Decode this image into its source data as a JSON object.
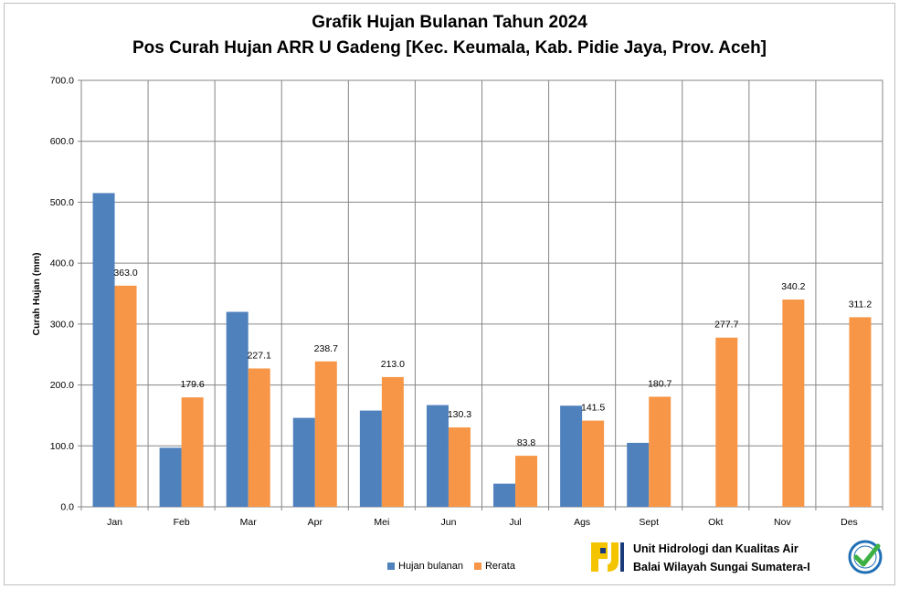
{
  "chart_data": {
    "type": "bar",
    "title": "Grafik Hujan  Bulanan Tahun 2024",
    "subtitle": "Pos Curah Hujan ARR U Gadeng [Kec. Keumala, Kab. Pidie Jaya, Prov. Aceh]",
    "xlabel": "",
    "ylabel": "Curah Hujan (mm)",
    "ylim": [
      0,
      700
    ],
    "yticks": [
      "0.0",
      "100.0",
      "200.0",
      "300.0",
      "400.0",
      "500.0",
      "600.0",
      "700.0"
    ],
    "grid": true,
    "categories": [
      "Jan",
      "Feb",
      "Mar",
      "Apr",
      "Mei",
      "Jun",
      "Jul",
      "Ags",
      "Sept",
      "Okt",
      "Nov",
      "Des"
    ],
    "series": [
      {
        "name": "Hujan bulanan",
        "color": "#4f81bd",
        "values": [
          515,
          97,
          320,
          146,
          158,
          167,
          38,
          166,
          105,
          null,
          null,
          null
        ]
      },
      {
        "name": "Rerata",
        "color": "#f79646",
        "values": [
          363.0,
          179.6,
          227.1,
          238.7,
          213.0,
          130.3,
          83.8,
          141.5,
          180.7,
          277.7,
          340.2,
          311.2
        ],
        "labels": [
          "363.0",
          "179.6",
          "227.1",
          "238.7",
          "213.0",
          "130.3",
          "83.8",
          "141.5",
          "180.7",
          "277.7",
          "340.2",
          "311.2"
        ]
      }
    ],
    "legend_position": "bottom"
  },
  "footer": {
    "org_line1": "Unit Hidrologi dan Kualitas Air",
    "org_line2": "Balai Wilayah Sungai Sumatera-I",
    "logo_icon": "pu-logo-icon",
    "badge_icon": "certified-badge-icon",
    "badge_color": "#1f6fb5",
    "check_color": "#3cb043"
  }
}
